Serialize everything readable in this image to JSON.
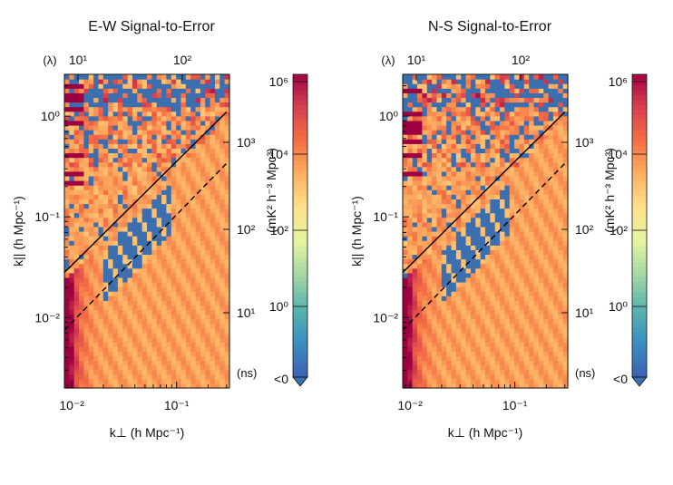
{
  "chart_data": [
    {
      "type": "heatmap",
      "title": "E-W Signal-to-Error",
      "xlabel": "k⊥ (h Mpc⁻¹)",
      "ylabel": "k|| (h Mpc⁻¹)",
      "x_scale": "log",
      "y_scale": "log",
      "xlim": [
        0.0085,
        0.32
      ],
      "ylim": [
        0.002,
        2.6
      ],
      "x_ticks": [
        {
          "value": 0.01,
          "label": "10⁻²"
        },
        {
          "value": 0.1,
          "label": "10⁻¹"
        }
      ],
      "y_ticks": [
        {
          "value": 0.01,
          "label": "10⁻²"
        },
        {
          "value": 0.1,
          "label": "10⁻¹"
        },
        {
          "value": 1,
          "label": "10⁰"
        }
      ],
      "top_axis": {
        "label": "(λ)",
        "ticks": [
          {
            "label": "10¹"
          },
          {
            "label": "10²"
          }
        ]
      },
      "right_axis": {
        "label": "(ns)",
        "ticks": [
          {
            "label": "10¹"
          },
          {
            "label": "10²"
          },
          {
            "label": "10³"
          }
        ]
      },
      "lines": [
        {
          "style": "solid",
          "points": [
            [
              0.0085,
              0.028
            ],
            [
              0.3,
              1.1
            ]
          ]
        },
        {
          "style": "dashed",
          "points": [
            [
              0.0085,
              0.0075
            ],
            [
              0.3,
              0.34
            ]
          ]
        }
      ],
      "colorbar": {
        "label": "(mK² h⁻³ Mpc³)",
        "ticks": [
          "10⁶",
          "10⁴",
          "10²",
          "10⁰",
          "<0"
        ],
        "range_log10": [
          -1,
          6
        ]
      }
    },
    {
      "type": "heatmap",
      "title": "N-S Signal-to-Error",
      "xlabel": "k⊥ (h Mpc⁻¹)",
      "ylabel": "k|| (h Mpc⁻¹)",
      "x_scale": "log",
      "y_scale": "log",
      "xlim": [
        0.0085,
        0.32
      ],
      "ylim": [
        0.002,
        2.6
      ],
      "x_ticks": [
        {
          "value": 0.01,
          "label": "10⁻²"
        },
        {
          "value": 0.1,
          "label": "10⁻¹"
        }
      ],
      "y_ticks": [
        {
          "value": 0.01,
          "label": "10⁻²"
        },
        {
          "value": 0.1,
          "label": "10⁻¹"
        },
        {
          "value": 1,
          "label": "10⁰"
        }
      ],
      "top_axis": {
        "label": "(λ)",
        "ticks": [
          {
            "label": "10¹"
          },
          {
            "label": "10²"
          }
        ]
      },
      "right_axis": {
        "label": "(ns)",
        "ticks": [
          {
            "label": "10¹"
          },
          {
            "label": "10²"
          },
          {
            "label": "10³"
          }
        ]
      },
      "lines": [
        {
          "style": "solid",
          "points": [
            [
              0.0085,
              0.028
            ],
            [
              0.3,
              1.1
            ]
          ]
        },
        {
          "style": "dashed",
          "points": [
            [
              0.0085,
              0.0075
            ],
            [
              0.3,
              0.34
            ]
          ]
        }
      ],
      "colorbar": {
        "label": "(mK² h⁻³ Mpc³)",
        "ticks": [
          "10⁶",
          "10⁴",
          "10²",
          "10⁰",
          "<0"
        ],
        "range_log10": [
          -1,
          6
        ]
      }
    }
  ],
  "colors": {
    "scale": [
      "#3c64b4",
      "#3b8fbf",
      "#5ab4ac",
      "#a7d8a4",
      "#e6f5a0",
      "#fee08b",
      "#fdae61",
      "#f46d43",
      "#d53e4f",
      "#9e0142"
    ],
    "under": "#3b6fb0",
    "axis": "#111111"
  }
}
